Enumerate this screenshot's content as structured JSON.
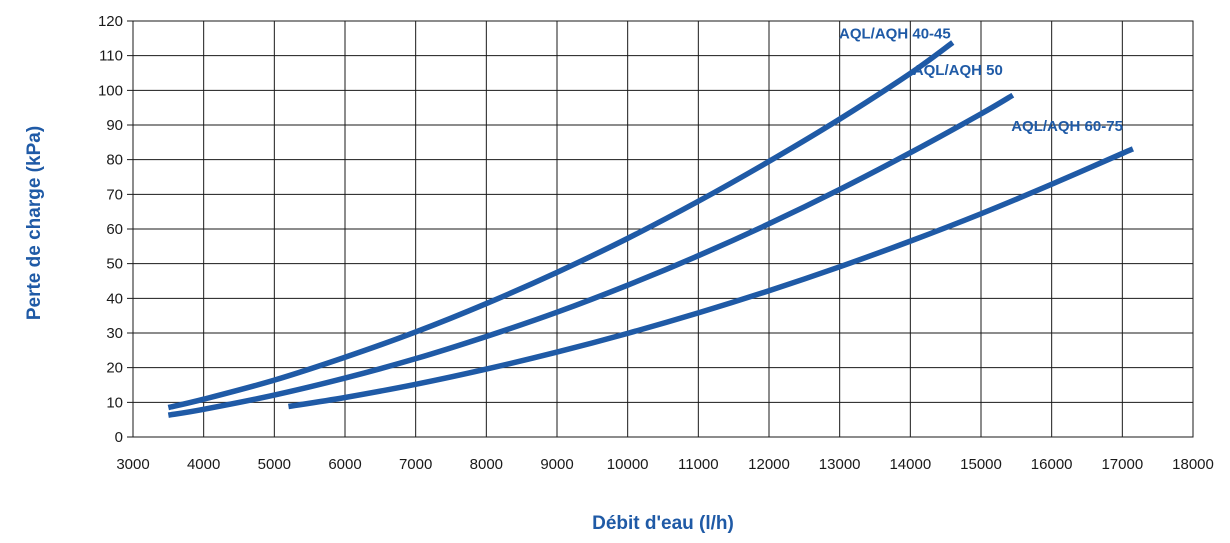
{
  "chart_data": {
    "type": "line",
    "xlabel": "Débit d'eau (l/h)",
    "ylabel": "Perte de charge (kPa)",
    "xlim": [
      3000,
      18000
    ],
    "ylim": [
      0,
      120
    ],
    "xticks": [
      3000,
      4000,
      5000,
      6000,
      7000,
      8000,
      9000,
      10000,
      11000,
      12000,
      13000,
      14000,
      15000,
      16000,
      17000,
      18000
    ],
    "yticks": [
      0,
      10,
      20,
      30,
      40,
      50,
      60,
      70,
      80,
      90,
      100,
      110,
      120
    ],
    "xtick_labels": [
      "3000",
      "4000",
      "5000",
      "6000",
      "7000",
      "8000",
      "9000",
      "10000",
      "11000",
      "12000",
      "13000",
      "14000",
      "15000",
      "16000",
      "17000",
      "18000"
    ],
    "ytick_labels": [
      "0",
      "10",
      "20",
      "30",
      "40",
      "50",
      "60",
      "70",
      "80",
      "90",
      "100",
      "110",
      "120"
    ],
    "grid": true,
    "series_color": "#1f5aa6",
    "series": [
      {
        "name": "AQL/AQH 40-45",
        "x": [
          3500,
          4000,
          5000,
          6000,
          7000,
          8000,
          9000,
          10000,
          11000,
          12000,
          13000,
          14000,
          14600
        ],
        "y": [
          8.5,
          10.9,
          16.4,
          23.0,
          30.3,
          38.5,
          47.5,
          57.3,
          68.0,
          79.5,
          91.7,
          104.9,
          113.8
        ]
      },
      {
        "name": "AQL/AQH 50",
        "x": [
          3500,
          4000,
          5000,
          6000,
          7000,
          8000,
          9000,
          10000,
          11000,
          12000,
          13000,
          14000,
          15000,
          15450
        ],
        "y": [
          6.3,
          8.0,
          12.1,
          17.0,
          22.6,
          29.0,
          36.0,
          43.8,
          52.3,
          61.5,
          71.4,
          82.0,
          93.2,
          98.6
        ]
      },
      {
        "name": "AQL/AQH 60-75",
        "x": [
          5200,
          6000,
          7000,
          8000,
          9000,
          10000,
          11000,
          12000,
          13000,
          14000,
          15000,
          16000,
          17000,
          17150
        ],
        "y": [
          8.8,
          11.4,
          15.2,
          19.6,
          24.5,
          29.9,
          35.8,
          42.2,
          49.1,
          56.5,
          64.4,
          72.9,
          81.8,
          83.1
        ]
      }
    ]
  }
}
